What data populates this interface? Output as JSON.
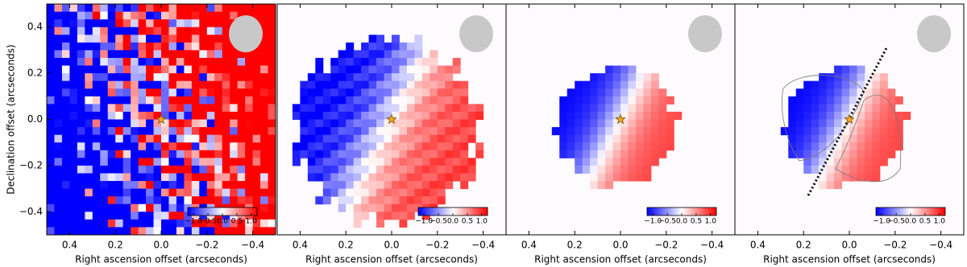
{
  "chart_data": [
    {
      "type": "map",
      "xlabel": "Right ascension offset (arcseconds)",
      "ylabel": "Declination offset (arcseconds)",
      "xlim": [
        0.5,
        -0.5
      ],
      "ylim": [
        -0.5,
        0.5
      ],
      "xticks": [
        0.4,
        0.2,
        {
          "value": 0,
          "label": "0.0"
        },
        {
          "value": -0.2,
          "label": "−0.2"
        },
        {
          "value": -0.4,
          "label": "−0.4"
        }
      ],
      "yticks": [
        {
          "value": -0.4,
          "label": "−0.4"
        },
        {
          "value": -0.2,
          "label": "−0.2"
        },
        {
          "value": 0,
          "label": "0.0"
        },
        0.2,
        0.4
      ],
      "colorbar": {
        "lim": [
          -1.2,
          1.2
        ],
        "ticks": [
          {
            "value": -1,
            "label": "−1.0"
          },
          {
            "value": -0.5,
            "label": "−0.5"
          },
          {
            "value": 0,
            "label": "0.0"
          },
          0.5,
          {
            "value": 1,
            "label": "1.0"
          }
        ]
      }
    },
    {
      "type": "map",
      "xlabel": "Right ascension offset (arcseconds)",
      "xlim": [
        0.5,
        -0.5
      ],
      "ylim": [
        -0.5,
        0.5
      ],
      "xticks": [
        0.4,
        0.2,
        {
          "value": 0,
          "label": "0.0"
        },
        {
          "value": -0.2,
          "label": "−0.2"
        },
        {
          "value": -0.4,
          "label": "−0.4"
        }
      ],
      "colorbar": {
        "lim": [
          -1.2,
          1.2
        ],
        "ticks": [
          {
            "value": -1,
            "label": "−1.0"
          },
          {
            "value": -0.5,
            "label": "−0.5"
          },
          {
            "value": 0,
            "label": "0.0"
          },
          0.5,
          {
            "value": 1,
            "label": "1.0"
          }
        ]
      }
    },
    {
      "type": "map",
      "xlabel": "Right ascension offset (arcseconds)",
      "xlim": [
        0.5,
        -0.5
      ],
      "ylim": [
        -0.5,
        0.5
      ],
      "xticks": [
        0.4,
        0.2,
        {
          "value": 0,
          "label": "0.0"
        },
        {
          "value": -0.2,
          "label": "−0.2"
        },
        {
          "value": -0.4,
          "label": "−0.4"
        }
      ],
      "colorbar": {
        "lim": [
          -1.2,
          1.2
        ],
        "ticks": [
          {
            "value": -1,
            "label": "−1.0"
          },
          {
            "value": -0.5,
            "label": "−0.5"
          },
          {
            "value": 0,
            "label": "0.0"
          },
          0.5,
          {
            "value": 1,
            "label": "1.0"
          }
        ]
      }
    },
    {
      "type": "map",
      "xlabel": "Right ascension offset (arcseconds)",
      "xlim": [
        0.5,
        -0.5
      ],
      "ylim": [
        -0.5,
        0.5
      ],
      "xticks": [
        0.4,
        0.2,
        {
          "value": 0,
          "label": "0.0"
        },
        {
          "value": -0.2,
          "label": "−0.2"
        },
        {
          "value": -0.4,
          "label": "−0.4"
        }
      ],
      "colorbar": {
        "lim": [
          -1.2,
          1.2
        ],
        "ticks": [
          {
            "value": -1,
            "label": "−1.0"
          },
          {
            "value": -0.5,
            "label": "−0.5"
          },
          {
            "value": 0,
            "label": "0.0"
          },
          0.5,
          {
            "value": 1,
            "label": "1.0"
          }
        ]
      }
    }
  ]
}
